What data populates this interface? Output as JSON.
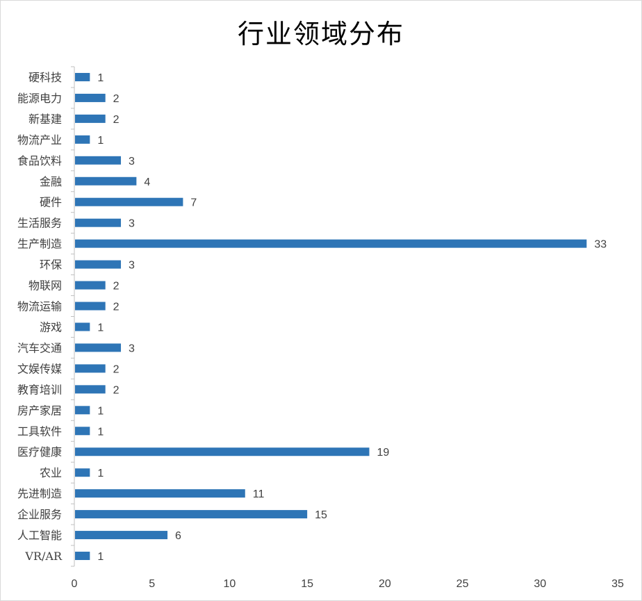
{
  "chart_data": {
    "type": "bar",
    "orientation": "horizontal",
    "title": "行业领域分布",
    "categories": [
      "硬科技",
      "能源电力",
      "新基建",
      "物流产业",
      "食品饮料",
      "金融",
      "硬件",
      "生活服务",
      "生产制造",
      "环保",
      "物联网",
      "物流运输",
      "游戏",
      "汽车交通",
      "文娱传媒",
      "教育培训",
      "房产家居",
      "工具软件",
      "医疗健康",
      "农业",
      "先进制造",
      "企业服务",
      "人工智能",
      "VR/AR"
    ],
    "values": [
      1,
      2,
      2,
      1,
      3,
      4,
      7,
      3,
      33,
      3,
      2,
      2,
      1,
      3,
      2,
      2,
      1,
      1,
      19,
      1,
      11,
      15,
      6,
      1
    ],
    "xlim": [
      0,
      35
    ],
    "xticks": [
      0,
      5,
      10,
      15,
      20,
      25,
      30,
      35
    ],
    "xlabel": "",
    "ylabel": "",
    "data_labels": true,
    "grid": false,
    "legend": "none",
    "bar_color": "#2e75b6"
  }
}
